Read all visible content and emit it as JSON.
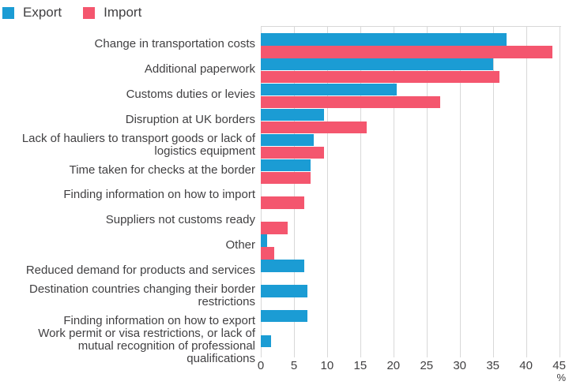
{
  "legend": {
    "items": [
      {
        "label": "Export",
        "color": "#1b9cd4"
      },
      {
        "label": "Import",
        "color": "#f4566e"
      }
    ]
  },
  "chart_data": {
    "type": "bar",
    "orientation": "horizontal",
    "title": "",
    "xlabel": "%",
    "ylabel": "",
    "xlim": [
      0,
      45
    ],
    "xticks": [
      0,
      5,
      10,
      15,
      20,
      25,
      30,
      35,
      40,
      45
    ],
    "grid": true,
    "legend_position": "top-left",
    "categories": [
      "Change in transportation costs",
      "Additional paperwork",
      "Customs duties or levies",
      "Disruption at UK borders",
      "Lack of hauliers to transport goods or lack of logistics equipment",
      "Time taken for checks at the border",
      "Finding information on how to import",
      "Suppliers not customs ready",
      "Other",
      "Reduced demand for products and services",
      "Destination countries changing their border restrictions",
      "Finding information on how to export",
      "Work permit or visa restrictions, or lack of mutual recognition of professional qualifications"
    ],
    "series": [
      {
        "name": "Export",
        "color": "#1b9cd4",
        "values": [
          37,
          35,
          20.5,
          9.5,
          8,
          7.5,
          null,
          null,
          1,
          6.5,
          7,
          7,
          1.5
        ]
      },
      {
        "name": "Import",
        "color": "#f4566e",
        "values": [
          44,
          36,
          27,
          16,
          9.5,
          7.5,
          6.5,
          4,
          2,
          null,
          null,
          null,
          null
        ]
      }
    ],
    "colors": {
      "grid": "#d8d8d8",
      "text": "#414042"
    }
  }
}
